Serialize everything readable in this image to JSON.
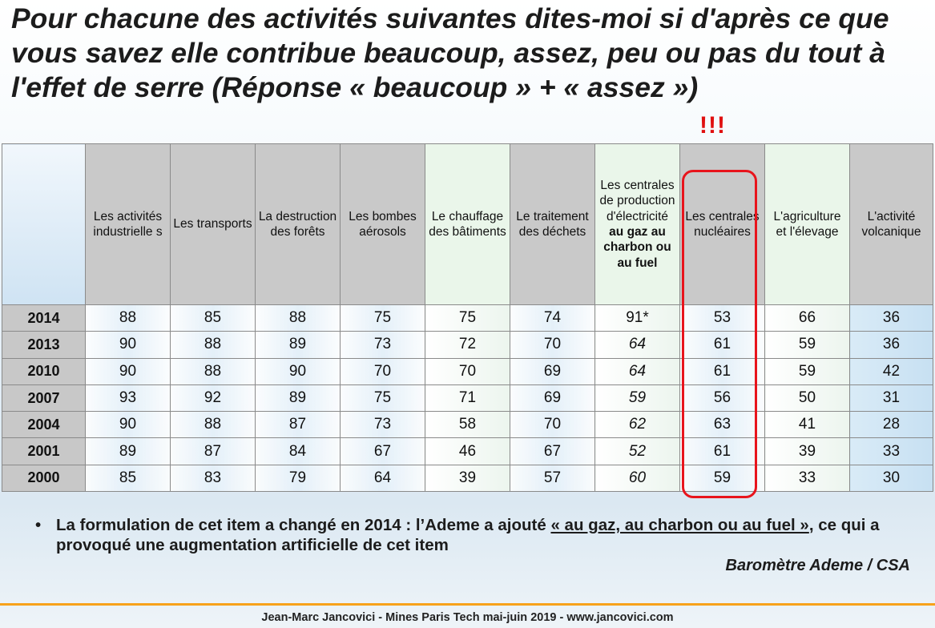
{
  "title": "Pour chacune des activités suivantes dites-moi si d'après ce que vous savez elle contribue beaucoup, assez, peu ou pas du tout à l'effet de serre (Réponse « beaucoup » + « assez »)",
  "alert": "!!!",
  "table": {
    "headers": [
      {
        "plain": "Les activités industrielle s",
        "bold": ""
      },
      {
        "plain": "Les transports",
        "bold": ""
      },
      {
        "plain": "La destruction des forêts",
        "bold": ""
      },
      {
        "plain": "Les bombes aérosols",
        "bold": ""
      },
      {
        "plain": "Le chauffage des bâtiments",
        "bold": ""
      },
      {
        "plain": "Le traitement des déchets",
        "bold": ""
      },
      {
        "plain": "Les centrales de production d'électricité",
        "bold": "au gaz au charbon ou au fuel"
      },
      {
        "plain": "Les centrales nucléaires",
        "bold": ""
      },
      {
        "plain": "L'agriculture et l'élevage",
        "bold": ""
      },
      {
        "plain": "L'activité volcanique",
        "bold": ""
      }
    ],
    "rows": [
      {
        "year": "2014",
        "values": [
          "88",
          "85",
          "88",
          "75",
          "75",
          "74",
          "91*",
          "53",
          "66",
          "36"
        ]
      },
      {
        "year": "2013",
        "values": [
          "90",
          "88",
          "89",
          "73",
          "72",
          "70",
          "64",
          "61",
          "59",
          "36"
        ]
      },
      {
        "year": "2010",
        "values": [
          "90",
          "88",
          "90",
          "70",
          "70",
          "69",
          "64",
          "61",
          "59",
          "42"
        ]
      },
      {
        "year": "2007",
        "values": [
          "93",
          "92",
          "89",
          "75",
          "71",
          "69",
          "59",
          "56",
          "50",
          "31"
        ]
      },
      {
        "year": "2004",
        "values": [
          "90",
          "88",
          "87",
          "73",
          "58",
          "70",
          "62",
          "63",
          "41",
          "28"
        ]
      },
      {
        "year": "2001",
        "values": [
          "89",
          "87",
          "84",
          "67",
          "46",
          "67",
          "52",
          "61",
          "39",
          "33"
        ]
      },
      {
        "year": "2000",
        "values": [
          "85",
          "83",
          "79",
          "64",
          "39",
          "57",
          "60",
          "59",
          "33",
          "30"
        ]
      }
    ]
  },
  "note": {
    "bullet": "•",
    "before": "La formulation de cet item a changé en 2014 : l’Ademe a ajouté ",
    "underlined": "« au gaz, au charbon ou au fuel »",
    "after": ", ce qui a provoqué une augmentation artificielle de cet item"
  },
  "source": "Baromètre Ademe / CSA",
  "footer": "Jean-Marc Jancovici - Mines Paris Tech mai-juin 2019 - www.jancovici.com",
  "colors": {
    "highlight": "#e8141c",
    "alert": "#e01010",
    "rule": "#f7a21a"
  }
}
